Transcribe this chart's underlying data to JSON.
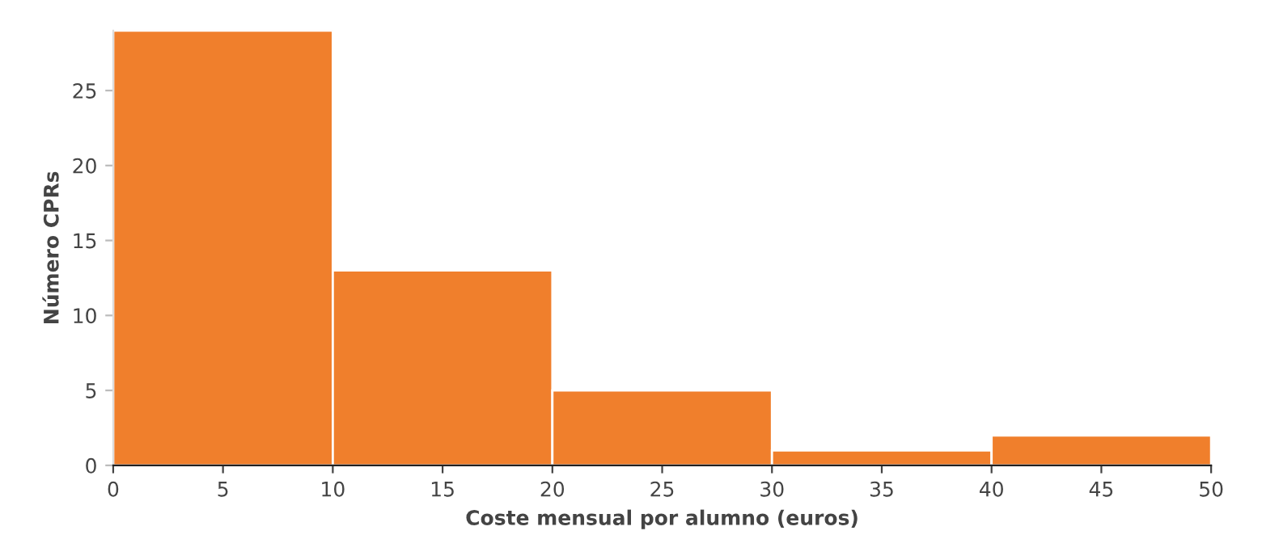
{
  "chart_data": {
    "type": "histogram",
    "xlabel": "Coste mensual por alumno (euros)",
    "ylabel": "Número CPRs",
    "bins": [
      0,
      10,
      20,
      30,
      40,
      50
    ],
    "values": [
      29,
      13,
      5,
      1,
      2
    ],
    "color": "#f07f2c",
    "xlim": [
      0,
      50
    ],
    "xticks": [
      0,
      5,
      10,
      15,
      20,
      25,
      30,
      35,
      40,
      45,
      50
    ],
    "ylim": [
      0,
      29
    ],
    "yticks": [
      0,
      5,
      10,
      15,
      20,
      25
    ],
    "grid": false,
    "legend": false
  }
}
